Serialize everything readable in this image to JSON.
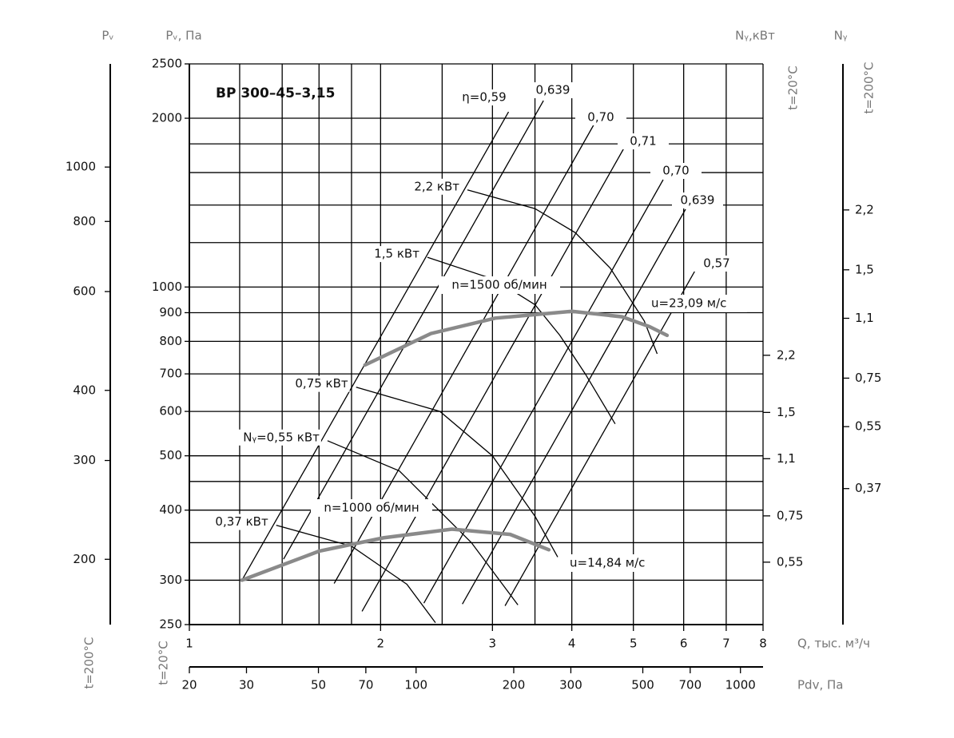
{
  "chart_data": {
    "type": "line",
    "title": "ВР 300–45–3,15",
    "log_scale": true,
    "grid": true,
    "x_label": "Q, тыс. м³/ч",
    "xlim": [
      1,
      8
    ],
    "xticks": [
      1,
      2,
      3,
      4,
      5,
      6,
      7,
      8
    ],
    "xgrid_minor": [
      1.2,
      1.4,
      1.6,
      1.8,
      2.5,
      3.5
    ],
    "y_label": "Pᵥ, Па",
    "y_note": "t=20°C",
    "ylim": [
      250,
      2500
    ],
    "yticks": [
      250,
      300,
      400,
      500,
      600,
      700,
      800,
      900,
      1000,
      2000,
      2500
    ],
    "ygrid_minor": [
      350,
      450,
      1200,
      1400,
      1600,
      1800
    ],
    "x2_label": "Pdv, Па",
    "x2lim": [
      20,
      1174
    ],
    "x2ticks": [
      20,
      30,
      50,
      70,
      100,
      200,
      300,
      500,
      700,
      1000
    ],
    "y3_label": "Pᵥ",
    "y3_note": "t=200°C",
    "y3lim": [
      153,
      1527
    ],
    "y3ticks": [
      200,
      300,
      400,
      600,
      800,
      1000
    ],
    "y2_label": "Nᵧ,кВт",
    "y2_note": "t=20°C",
    "y2lim": [
      0.362,
      15.5
    ],
    "y2ticks": [
      {
        "value": 2.2,
        "label": "2,2"
      },
      {
        "value": 1.5,
        "label": "1,5"
      },
      {
        "value": 1.1,
        "label": "1,1"
      },
      {
        "value": 0.75,
        "label": "0,75"
      },
      {
        "value": 0.55,
        "label": "0,55"
      }
    ],
    "y4_label": "Nᵧ",
    "y4_note": "t=200°C",
    "y4lim": [
      0.155,
      5.6
    ],
    "y4ticks": [
      {
        "value": 2.2,
        "label": "2,2"
      },
      {
        "value": 1.5,
        "label": "1,5"
      },
      {
        "value": 1.1,
        "label": "1,1"
      },
      {
        "value": 0.75,
        "label": "0,75"
      },
      {
        "value": 0.55,
        "label": "0,55"
      },
      {
        "value": 0.37,
        "label": "0,37"
      }
    ],
    "series": [
      {
        "name": "n=1500 об/мин",
        "color": "#8a8a8a",
        "x": [
          1.89,
          2.4,
          3.03,
          4.0,
          4.8,
          5.3,
          5.65
        ],
        "values": [
          726,
          826,
          880,
          905,
          885,
          850,
          820
        ]
      },
      {
        "name": "n=1000 об/мин",
        "color": "#8a8a8a",
        "x": [
          1.21,
          1.6,
          2.02,
          2.59,
          3.2,
          3.68
        ],
        "values": [
          300,
          338,
          357,
          370,
          362,
          340
        ]
      }
    ],
    "annotations": [
      "u=23,09 м/с",
      "u=14,84 м/с"
    ],
    "power_curves": [
      {
        "name": "2,2 кВт",
        "color": "#000000",
        "x": [
          2.74,
          3.5,
          4.05,
          4.6,
          5.2,
          5.45
        ],
        "values": [
          1490,
          1380,
          1250,
          1080,
          870,
          760
        ]
      },
      {
        "name": "1,5 кВт",
        "color": "#000000",
        "x": [
          2.37,
          3.03,
          3.5,
          3.83,
          4.2,
          4.68
        ],
        "values": [
          1130,
          1030,
          930,
          820,
          700,
          570
        ]
      },
      {
        "name": "0,75 кВт",
        "color": "#000000",
        "x": [
          1.83,
          2.48,
          3.0,
          3.5,
          3.8
        ],
        "values": [
          663,
          600,
          500,
          390,
          330
        ]
      },
      {
        "name": "Nᵧ=0,55 кВт",
        "color": "#000000",
        "x": [
          1.65,
          2.14,
          2.78,
          3.29
        ],
        "values": [
          532,
          470,
          350,
          271
        ]
      },
      {
        "name": "0,37 кВт",
        "color": "#000000",
        "x": [
          1.37,
          1.8,
          2.2,
          2.44
        ],
        "values": [
          376,
          345,
          295,
          252
        ]
      }
    ],
    "efficiency_lines": [
      {
        "name": "η=0,59",
        "color": "#000000",
        "x": [
          1.21,
          3.18
        ],
        "values": [
          300,
          2053
        ]
      },
      {
        "name": "0,639",
        "color": "#000000",
        "x": [
          1.407,
          3.61
        ],
        "values": [
          327,
          2150
        ]
      },
      {
        "name": "0,70",
        "color": "#000000",
        "x": [
          1.69,
          4.39
        ],
        "values": [
          296,
          2000
        ]
      },
      {
        "name": "0,71",
        "color": "#000000",
        "x": [
          1.87,
          4.86
        ],
        "values": [
          264,
          1789
        ]
      },
      {
        "name": "0,70",
        "color": "#000000",
        "x": [
          2.34,
          5.57
        ],
        "values": [
          273,
          1554
        ]
      },
      {
        "name": "0,639",
        "color": "#000000",
        "x": [
          2.69,
          6.04
        ],
        "values": [
          272,
          1376
        ]
      },
      {
        "name": "0,57",
        "color": "#000000",
        "x": [
          3.14,
          6.26
        ],
        "values": [
          270,
          1072
        ]
      }
    ]
  }
}
